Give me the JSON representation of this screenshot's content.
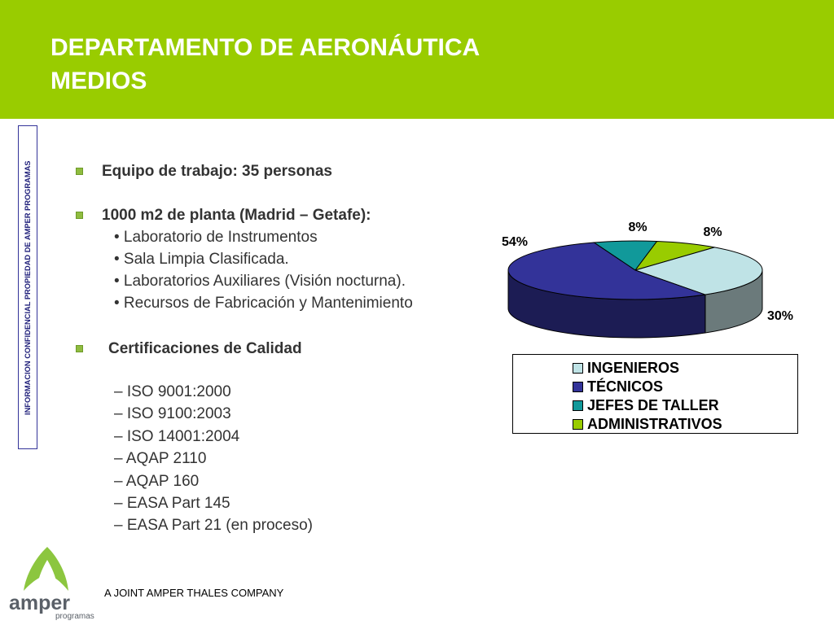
{
  "header": {
    "title_line1": "DEPARTAMENTO DE AERONÁUTICA",
    "title_line2": "MEDIOS",
    "color": "#99cc00"
  },
  "side_label": "INFORMACION CONFIDENCIAL PROPIEDAD DE AMPER PROGRAMAS",
  "content": {
    "bullet1": "Equipo de trabajo: 35 personas",
    "bullet2": "1000 m2 de planta (Madrid – Getafe):",
    "bullet2_items": [
      "• Laboratorio de Instrumentos",
      "• Sala Limpia Clasificada.",
      "• Laboratorios Auxiliares (Visión nocturna).",
      "• Recursos de Fabricación y Mantenimiento"
    ],
    "bullet3": "Certificaciones de Calidad",
    "certifications": [
      "– ISO 9001:2000",
      "– ISO 9100:2003",
      "– ISO 14001:2004",
      "– AQAP 2110",
      "– AQAP 160",
      "– EASA Part 145",
      "– EASA Part 21 (en proceso)"
    ]
  },
  "chart_data": {
    "type": "pie",
    "categories": [
      "INGENIEROS",
      "TÉCNICOS",
      "JEFES DE TALLER",
      "ADMINISTRATIVOS"
    ],
    "values": [
      30,
      54,
      8,
      8
    ],
    "data_labels": [
      "30%",
      "54%",
      "8%",
      "8%"
    ],
    "colors": [
      "#bfe3e6",
      "#333399",
      "#11999a",
      "#99cc00"
    ],
    "legend_placement": "bottom",
    "style": "3d"
  },
  "footer": {
    "company_text": "A JOINT AMPER THALES COMPANY",
    "logo_text": "amper",
    "logo_subtext": "programas"
  }
}
